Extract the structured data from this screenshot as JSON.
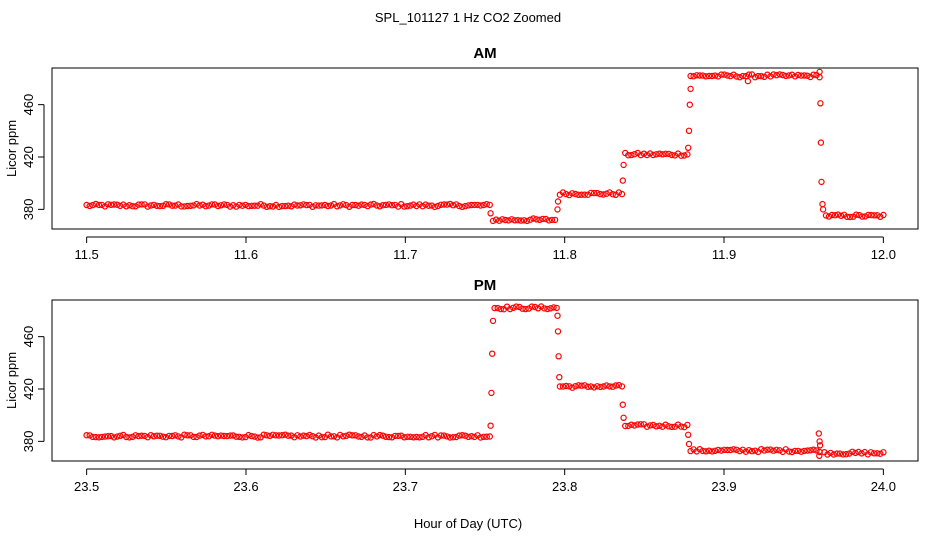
{
  "figure": {
    "title": "SPL_101127  1 Hz CO2 Zoomed",
    "xlabel": "Hour of Day (UTC)"
  },
  "colors": {
    "points": "#ff0000",
    "axes": "#000000",
    "background": "#ffffff"
  },
  "chart_data": [
    {
      "type": "scatter",
      "title": "AM",
      "xlabel": "",
      "ylabel": "Licor ppm",
      "xlim": [
        11.5,
        12.0
      ],
      "ylim": [
        365,
        488
      ],
      "x_ticks": [
        "11.5",
        "11.6",
        "11.7",
        "11.8",
        "11.9",
        "12.0"
      ],
      "y_ticks": [
        "380",
        "420",
        "460"
      ],
      "grid": false,
      "segments": [
        {
          "x_start": 11.5,
          "x_end": 11.753,
          "y": 383
        },
        {
          "x_start": 11.755,
          "x_end": 11.794,
          "y": 372
        },
        {
          "x_start": 11.797,
          "x_end": 11.836,
          "y": 392
        },
        {
          "x_start": 11.838,
          "x_end": 11.877,
          "y": 422
        },
        {
          "x_start": 11.879,
          "x_end": 11.96,
          "y": 482
        },
        {
          "x_start": 11.964,
          "x_end": 12.0,
          "y": 375
        }
      ],
      "transitions": [
        {
          "x": 11.7535,
          "y": 377
        },
        {
          "x": 11.7955,
          "x_note": "",
          "y": 380
        },
        {
          "x": 11.7958,
          "y": 386
        },
        {
          "x": 11.8365,
          "y": 402
        },
        {
          "x": 11.837,
          "y": 414
        },
        {
          "x": 11.8775,
          "y": 427
        },
        {
          "x": 11.878,
          "y": 440
        },
        {
          "x": 11.8785,
          "y": 460
        },
        {
          "x": 11.879,
          "y": 472
        },
        {
          "x": 11.96,
          "y": 485
        },
        {
          "x": 11.9605,
          "y": 461
        },
        {
          "x": 11.9608,
          "y": 431
        },
        {
          "x": 11.9612,
          "y": 401
        },
        {
          "x": 11.9618,
          "y": 384
        },
        {
          "x": 11.9622,
          "y": 380
        },
        {
          "x": 11.915,
          "y": 478
        }
      ]
    },
    {
      "type": "scatter",
      "title": "PM",
      "xlabel": "",
      "ylabel": "Licor ppm",
      "xlim": [
        23.5,
        24.0
      ],
      "ylim": [
        365,
        488
      ],
      "x_ticks": [
        "23.5",
        "23.6",
        "23.7",
        "23.8",
        "23.9",
        "24.0"
      ],
      "y_ticks": [
        "380",
        "420",
        "460"
      ],
      "grid": false,
      "segments": [
        {
          "x_start": 23.5,
          "x_end": 23.753,
          "y": 384
        },
        {
          "x_start": 23.756,
          "x_end": 23.795,
          "y": 482
        },
        {
          "x_start": 23.797,
          "x_end": 23.836,
          "y": 422
        },
        {
          "x_start": 23.838,
          "x_end": 23.877,
          "y": 392
        },
        {
          "x_start": 23.879,
          "x_end": 23.96,
          "y": 373
        },
        {
          "x_start": 23.963,
          "x_end": 24.0,
          "y": 371
        }
      ],
      "transitions": [
        {
          "x": 23.7535,
          "y": 392
        },
        {
          "x": 23.754,
          "y": 417
        },
        {
          "x": 23.7545,
          "y": 447
        },
        {
          "x": 23.755,
          "y": 472
        },
        {
          "x": 23.7955,
          "y": 476
        },
        {
          "x": 23.7958,
          "y": 464
        },
        {
          "x": 23.7962,
          "y": 445
        },
        {
          "x": 23.7966,
          "y": 429
        },
        {
          "x": 23.8365,
          "y": 408
        },
        {
          "x": 23.837,
          "y": 398
        },
        {
          "x": 23.8775,
          "y": 385
        },
        {
          "x": 23.878,
          "y": 378
        },
        {
          "x": 23.9595,
          "y": 386
        },
        {
          "x": 23.96,
          "y": 380
        },
        {
          "x": 23.9603,
          "y": 377
        },
        {
          "x": 23.9598,
          "y": 369
        }
      ]
    }
  ]
}
